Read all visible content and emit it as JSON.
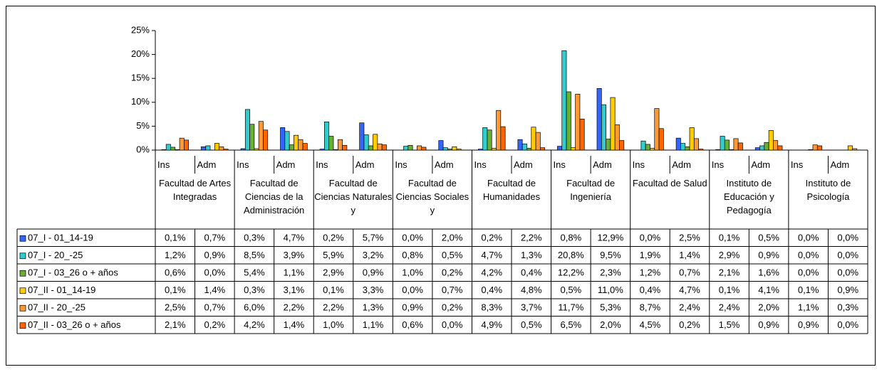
{
  "chart_data": {
    "type": "bar",
    "groups": [
      "Facultad de Artes Integradas",
      "Facultad de Ciencias de la Administración",
      "Facultad de Ciencias Naturales y",
      "Facultad de Ciencias Sociales y",
      "Facultad de Humanidades",
      "Facultad de Ingeniería",
      "Facultad de Salud",
      "Instituto de Educación y Pedagogía",
      "Instituto de Psicología"
    ],
    "categories": [
      "Ins",
      "Adm",
      "Ins",
      "Adm",
      "Ins",
      "Adm",
      "Ins",
      "Adm",
      "Ins",
      "Adm",
      "Ins",
      "Adm",
      "Ins",
      "Adm",
      "Ins",
      "Adm",
      "Ins",
      "Adm"
    ],
    "ylim": [
      0,
      25
    ],
    "yticks": [
      {
        "value": 0,
        "label": "0%"
      },
      {
        "value": 5,
        "label": "5%"
      },
      {
        "value": 10,
        "label": "10%"
      },
      {
        "value": 15,
        "label": "15%"
      },
      {
        "value": 20,
        "label": "20%"
      },
      {
        "value": 25,
        "label": "25%"
      }
    ],
    "grid": false,
    "series": [
      {
        "name": "07_I - 01_14-19",
        "color": "#3366ff",
        "values": [
          0.1,
          0.7,
          0.3,
          4.7,
          0.2,
          5.7,
          0.0,
          2.0,
          0.2,
          2.2,
          0.8,
          12.9,
          0.0,
          2.5,
          0.1,
          0.5,
          0.0,
          0.0
        ],
        "value_labels": [
          "0,1%",
          "0,7%",
          "0,3%",
          "4,7%",
          "0,2%",
          "5,7%",
          "0,0%",
          "2,0%",
          "0,2%",
          "2,2%",
          "0,8%",
          "12,9%",
          "0,0%",
          "2,5%",
          "0,1%",
          "0,5%",
          "0,0%",
          "0,0%"
        ]
      },
      {
        "name": "07_I - 20_-25",
        "color": "#33cccc",
        "values": [
          1.2,
          0.9,
          8.5,
          3.9,
          5.9,
          3.2,
          0.8,
          0.5,
          4.7,
          1.3,
          20.8,
          9.5,
          1.9,
          1.4,
          2.9,
          0.9,
          0.0,
          0.0
        ],
        "value_labels": [
          "1,2%",
          "0,9%",
          "8,5%",
          "3,9%",
          "5,9%",
          "3,2%",
          "0,8%",
          "0,5%",
          "4,7%",
          "1,3%",
          "20,8%",
          "9,5%",
          "1,9%",
          "1,4%",
          "2,9%",
          "0,9%",
          "0,0%",
          "0,0%"
        ]
      },
      {
        "name": "07_I - 03_26 o + años",
        "color": "#66b032",
        "values": [
          0.6,
          0.0,
          5.4,
          1.1,
          2.9,
          0.9,
          1.0,
          0.2,
          4.2,
          0.4,
          12.2,
          2.3,
          1.2,
          0.7,
          2.1,
          1.6,
          0.0,
          0.0
        ],
        "value_labels": [
          "0,6%",
          "0,0%",
          "5,4%",
          "1,1%",
          "2,9%",
          "0,9%",
          "1,0%",
          "0,2%",
          "4,2%",
          "0,4%",
          "12,2%",
          "2,3%",
          "1,2%",
          "0,7%",
          "2,1%",
          "1,6%",
          "0,0%",
          "0,0%"
        ]
      },
      {
        "name": "07_II - 01_14-19",
        "color": "#ffcc00",
        "values": [
          0.1,
          1.4,
          0.3,
          3.1,
          0.1,
          3.3,
          0.0,
          0.7,
          0.4,
          4.8,
          0.5,
          11.0,
          0.4,
          4.7,
          0.1,
          4.1,
          0.1,
          0.9
        ],
        "value_labels": [
          "0,1%",
          "1,4%",
          "0,3%",
          "3,1%",
          "0,1%",
          "3,3%",
          "0,0%",
          "0,7%",
          "0,4%",
          "4,8%",
          "0,5%",
          "11,0%",
          "0,4%",
          "4,7%",
          "0,1%",
          "4,1%",
          "0,1%",
          "0,9%"
        ]
      },
      {
        "name": "07_II - 20_-25",
        "color": "#ff9933",
        "values": [
          2.5,
          0.7,
          6.0,
          2.2,
          2.2,
          1.3,
          0.9,
          0.2,
          8.3,
          3.7,
          11.7,
          5.3,
          8.7,
          2.4,
          2.4,
          2.0,
          1.1,
          0.3
        ],
        "value_labels": [
          "2,5%",
          "0,7%",
          "6,0%",
          "2,2%",
          "2,2%",
          "1,3%",
          "0,9%",
          "0,2%",
          "8,3%",
          "3,7%",
          "11,7%",
          "5,3%",
          "8,7%",
          "2,4%",
          "2,4%",
          "2,0%",
          "1,1%",
          "0,3%"
        ]
      },
      {
        "name": "07_II - 03_26 o + años",
        "color": "#ff6600",
        "values": [
          2.1,
          0.2,
          4.2,
          1.4,
          1.0,
          1.1,
          0.6,
          0.0,
          4.9,
          0.5,
          6.5,
          2.0,
          4.5,
          0.2,
          1.5,
          0.9,
          0.9,
          0.0
        ],
        "value_labels": [
          "2,1%",
          "0,2%",
          "4,2%",
          "1,4%",
          "1,0%",
          "1,1%",
          "0,6%",
          "0,0%",
          "4,9%",
          "0,5%",
          "6,5%",
          "2,0%",
          "4,5%",
          "0,2%",
          "1,5%",
          "0,9%",
          "0,9%",
          "0,0%"
        ]
      }
    ]
  }
}
